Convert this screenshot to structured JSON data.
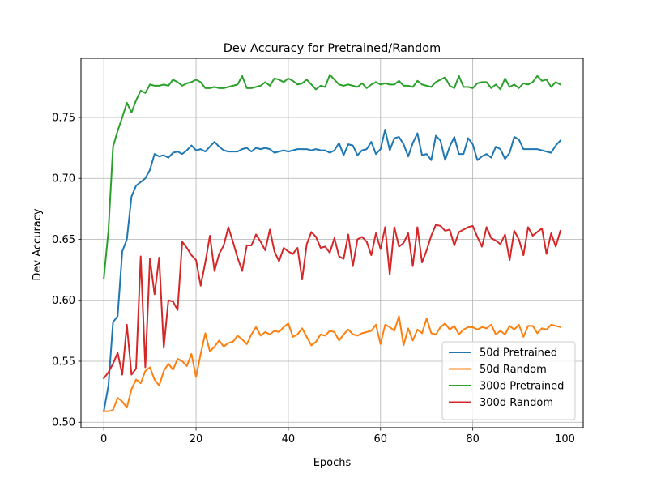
{
  "chart_data": {
    "type": "line",
    "title": "Dev Accuracy for Pretrained/Random",
    "xlabel": "Epochs",
    "ylabel": "Dev Accuracy",
    "xlim": [
      -4.95,
      103.95
    ],
    "ylim": [
      0.4955,
      0.7985
    ],
    "xticks": [
      0,
      20,
      40,
      60,
      80,
      100
    ],
    "xtick_labels": [
      "0",
      "20",
      "40",
      "60",
      "80",
      "100"
    ],
    "yticks": [
      0.5,
      0.55,
      0.6,
      0.65,
      0.7,
      0.75
    ],
    "ytick_labels": [
      "0.50",
      "0.55",
      "0.60",
      "0.65",
      "0.70",
      "0.75"
    ],
    "grid": true,
    "legend_position": "lower-right",
    "series": [
      {
        "name": "50d Pretrained",
        "color": "#1f77b4",
        "values": [
          0.509,
          0.53,
          0.582,
          0.587,
          0.64,
          0.65,
          0.685,
          0.694,
          0.697,
          0.7,
          0.707,
          0.72,
          0.718,
          0.719,
          0.717,
          0.721,
          0.722,
          0.72,
          0.723,
          0.727,
          0.723,
          0.724,
          0.722,
          0.726,
          0.73,
          0.726,
          0.723,
          0.722,
          0.722,
          0.722,
          0.724,
          0.725,
          0.722,
          0.725,
          0.724,
          0.725,
          0.724,
          0.721,
          0.722,
          0.723,
          0.722,
          0.723,
          0.724,
          0.724,
          0.724,
          0.723,
          0.724,
          0.723,
          0.723,
          0.721,
          0.723,
          0.729,
          0.719,
          0.728,
          0.727,
          0.719,
          0.723,
          0.724,
          0.73,
          0.72,
          0.724,
          0.74,
          0.723,
          0.733,
          0.734,
          0.728,
          0.718,
          0.729,
          0.737,
          0.719,
          0.72,
          0.715,
          0.735,
          0.731,
          0.715,
          0.726,
          0.734,
          0.72,
          0.72,
          0.733,
          0.728,
          0.715,
          0.718,
          0.72,
          0.717,
          0.726,
          0.724,
          0.716,
          0.721,
          0.734,
          0.732,
          0.724,
          0.724,
          0.724,
          0.724,
          0.723,
          0.722,
          0.721,
          0.727,
          0.731
        ]
      },
      {
        "name": "50d Random",
        "color": "#ff7f0e",
        "values": [
          0.509,
          0.509,
          0.51,
          0.52,
          0.517,
          0.512,
          0.527,
          0.535,
          0.532,
          0.542,
          0.545,
          0.535,
          0.53,
          0.542,
          0.548,
          0.543,
          0.552,
          0.55,
          0.546,
          0.556,
          0.537,
          0.556,
          0.573,
          0.558,
          0.562,
          0.567,
          0.562,
          0.565,
          0.566,
          0.571,
          0.568,
          0.564,
          0.572,
          0.578,
          0.571,
          0.574,
          0.572,
          0.575,
          0.574,
          0.578,
          0.581,
          0.57,
          0.572,
          0.577,
          0.57,
          0.563,
          0.566,
          0.572,
          0.571,
          0.575,
          0.574,
          0.567,
          0.572,
          0.576,
          0.572,
          0.571,
          0.573,
          0.574,
          0.575,
          0.58,
          0.564,
          0.58,
          0.578,
          0.575,
          0.587,
          0.563,
          0.577,
          0.567,
          0.576,
          0.573,
          0.585,
          0.573,
          0.572,
          0.578,
          0.581,
          0.576,
          0.579,
          0.572,
          0.576,
          0.578,
          0.578,
          0.576,
          0.578,
          0.577,
          0.58,
          0.572,
          0.575,
          0.572,
          0.579,
          0.576,
          0.58,
          0.57,
          0.579,
          0.579,
          0.573,
          0.577,
          0.576,
          0.58,
          0.579,
          0.578
        ]
      },
      {
        "name": "300d Pretrained",
        "color": "#2ca02c",
        "values": [
          0.618,
          0.657,
          0.726,
          0.739,
          0.75,
          0.762,
          0.754,
          0.764,
          0.772,
          0.77,
          0.777,
          0.776,
          0.776,
          0.777,
          0.776,
          0.781,
          0.779,
          0.776,
          0.778,
          0.779,
          0.781,
          0.779,
          0.774,
          0.774,
          0.775,
          0.774,
          0.774,
          0.775,
          0.776,
          0.777,
          0.784,
          0.774,
          0.774,
          0.775,
          0.776,
          0.779,
          0.776,
          0.782,
          0.781,
          0.779,
          0.782,
          0.78,
          0.777,
          0.778,
          0.781,
          0.777,
          0.773,
          0.776,
          0.775,
          0.785,
          0.781,
          0.777,
          0.776,
          0.777,
          0.776,
          0.775,
          0.778,
          0.774,
          0.777,
          0.779,
          0.777,
          0.778,
          0.777,
          0.777,
          0.78,
          0.776,
          0.776,
          0.775,
          0.78,
          0.777,
          0.776,
          0.775,
          0.779,
          0.781,
          0.783,
          0.776,
          0.774,
          0.784,
          0.775,
          0.775,
          0.774,
          0.778,
          0.779,
          0.779,
          0.774,
          0.777,
          0.773,
          0.782,
          0.775,
          0.777,
          0.774,
          0.778,
          0.777,
          0.779,
          0.784,
          0.78,
          0.781,
          0.775,
          0.779,
          0.777
        ]
      },
      {
        "name": "300d Random",
        "color": "#d62728",
        "values": [
          0.536,
          0.541,
          0.548,
          0.557,
          0.539,
          0.58,
          0.539,
          0.544,
          0.636,
          0.545,
          0.634,
          0.605,
          0.635,
          0.561,
          0.6,
          0.599,
          0.592,
          0.648,
          0.643,
          0.637,
          0.633,
          0.612,
          0.631,
          0.653,
          0.624,
          0.638,
          0.645,
          0.66,
          0.648,
          0.635,
          0.624,
          0.645,
          0.645,
          0.654,
          0.648,
          0.641,
          0.658,
          0.64,
          0.632,
          0.643,
          0.64,
          0.638,
          0.643,
          0.617,
          0.646,
          0.656,
          0.652,
          0.643,
          0.644,
          0.639,
          0.651,
          0.636,
          0.634,
          0.654,
          0.628,
          0.65,
          0.652,
          0.648,
          0.637,
          0.655,
          0.642,
          0.66,
          0.621,
          0.66,
          0.644,
          0.647,
          0.655,
          0.628,
          0.66,
          0.631,
          0.641,
          0.653,
          0.662,
          0.661,
          0.657,
          0.658,
          0.645,
          0.656,
          0.658,
          0.66,
          0.661,
          0.652,
          0.644,
          0.66,
          0.651,
          0.649,
          0.646,
          0.654,
          0.633,
          0.657,
          0.65,
          0.637,
          0.66,
          0.653,
          0.656,
          0.659,
          0.638,
          0.655,
          0.644,
          0.657
        ]
      }
    ]
  }
}
